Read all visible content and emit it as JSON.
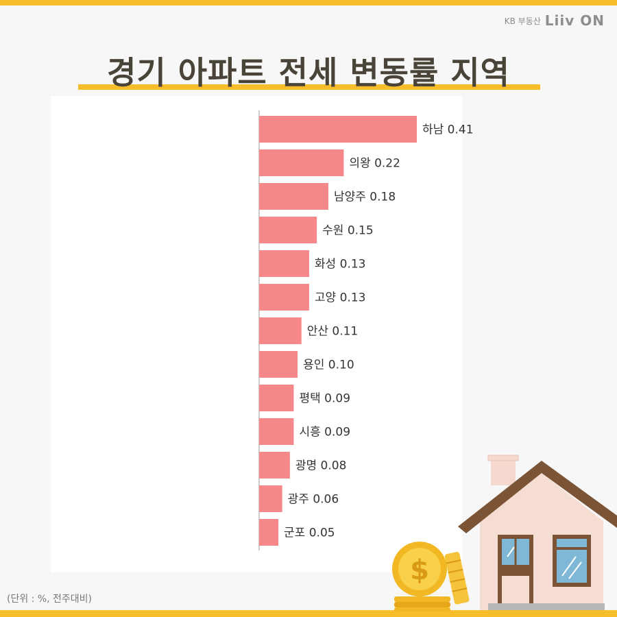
{
  "brand": {
    "kb_text": "KB 부동산",
    "logo_text": "Liiv ON"
  },
  "title": "경기 아파트 전세 변동률 지역",
  "footnote": "(단위 : %, 전주대비)",
  "colors": {
    "accent": "#f5be2a",
    "bar": "#f7888a",
    "title": "#4a4338"
  },
  "chart_data": {
    "type": "bar",
    "orientation": "horizontal",
    "categories": [
      "하남",
      "의왕",
      "남양주",
      "수원",
      "화성",
      "고양",
      "안산",
      "용인",
      "평택",
      "시흥",
      "광명",
      "광주",
      "군포"
    ],
    "values": [
      0.41,
      0.22,
      0.18,
      0.15,
      0.13,
      0.13,
      0.11,
      0.1,
      0.09,
      0.09,
      0.08,
      0.06,
      0.05
    ],
    "value_labels": [
      "0.41",
      "0.22",
      "0.18",
      "0.15",
      "0.13",
      "0.13",
      "0.11",
      "0.10",
      "0.09",
      "0.09",
      "0.08",
      "0.06",
      "0.05"
    ],
    "title": "경기 아파트 전세 변동률 지역",
    "xlabel": "",
    "ylabel": "",
    "xlim": [
      0,
      0.41
    ],
    "grid": false,
    "legend": "none"
  }
}
